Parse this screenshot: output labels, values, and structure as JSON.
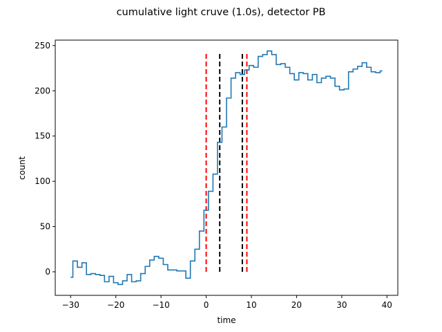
{
  "chart_data": {
    "type": "line",
    "drawstyle": "steps-mid",
    "title": "cumulative light cruve (1.0s), detector PB",
    "xlabel": "time",
    "ylabel": "count",
    "xlim": [
      -33.4,
      42.4
    ],
    "ylim": [
      -26,
      256
    ],
    "xticks": [
      -30,
      -20,
      -10,
      0,
      10,
      20,
      30,
      40
    ],
    "yticks": [
      0,
      50,
      100,
      150,
      200,
      250
    ],
    "grid": false,
    "legend": "none",
    "series": [
      {
        "color": "#1f77b4",
        "x": [
          -30,
          -29,
          -28,
          -27,
          -26,
          -25,
          -24,
          -23,
          -22,
          -21,
          -20,
          -19,
          -18,
          -17,
          -16,
          -15,
          -14,
          -13,
          -12,
          -11,
          -10,
          -9,
          -8,
          -7,
          -6,
          -5,
          -4,
          -3,
          -2,
          -1,
          0,
          1,
          2,
          3,
          4,
          5,
          6,
          7,
          8,
          9,
          10,
          11,
          12,
          13,
          14,
          15,
          16,
          17,
          18,
          19,
          20,
          21,
          22,
          23,
          24,
          25,
          26,
          27,
          28,
          29,
          30,
          31,
          32,
          33,
          34,
          35,
          36,
          37,
          38,
          39
        ],
        "y": [
          -6,
          12,
          5,
          10,
          -3,
          -2,
          -3,
          -4,
          -11,
          -5,
          -12,
          -14,
          -10,
          -3,
          -11,
          -10,
          -2,
          6,
          13,
          17,
          15,
          8,
          2,
          2,
          1,
          1,
          -7,
          12,
          25,
          45,
          68,
          89,
          108,
          143,
          160,
          192,
          214,
          220,
          218,
          223,
          228,
          226,
          238,
          240,
          244,
          240,
          229,
          230,
          226,
          219,
          212,
          220,
          219,
          212,
          218,
          209,
          214,
          216,
          214,
          205,
          201,
          202,
          221,
          224,
          227,
          231,
          226,
          221,
          220,
          222
        ],
        "x_offset": 0
      }
    ],
    "vertical_lines": [
      {
        "x": 0,
        "color": "#ff0000",
        "style": "dashed"
      },
      {
        "x": 3,
        "color": "#000000",
        "style": "dashed"
      },
      {
        "x": 8,
        "color": "#000000",
        "style": "dashed"
      },
      {
        "x": 9,
        "color": "#ff0000",
        "style": "dashed"
      }
    ],
    "vline_ymin": 0,
    "vline_ymax": 243
  }
}
